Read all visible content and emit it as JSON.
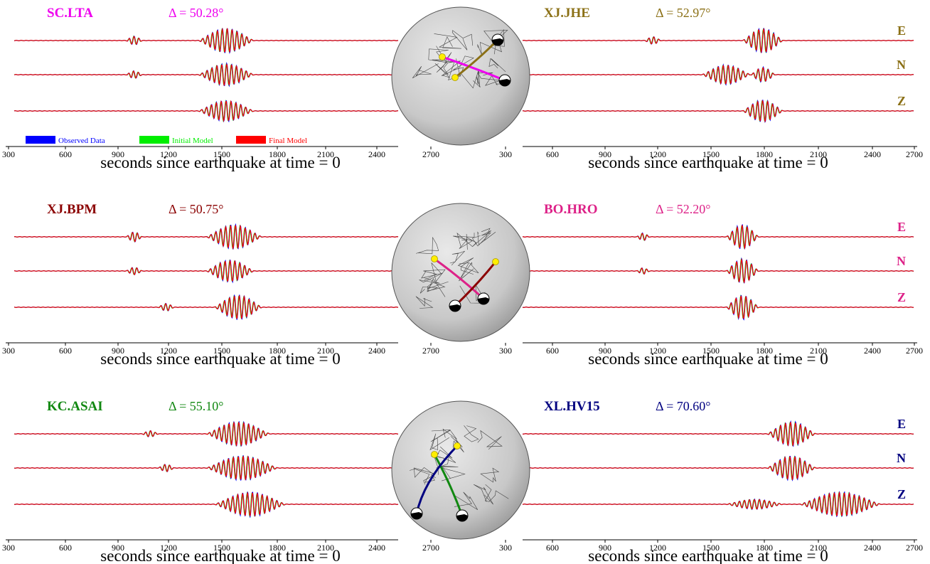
{
  "chart_data": {
    "type": "line",
    "xlabel": "seconds since earthquake at time = 0",
    "xlim": [
      300,
      2700
    ],
    "xticks": [
      300,
      600,
      900,
      1200,
      1500,
      1800,
      2100,
      2400,
      2700
    ],
    "components": [
      "E",
      "N",
      "Z"
    ],
    "legend": {
      "placement": "bottom-left of first panel",
      "entries": [
        {
          "label": "Observed Data",
          "color": "#0000ff"
        },
        {
          "label": "Initial Model",
          "color": "#00ee00"
        },
        {
          "label": "Final Model",
          "color": "#ff0000"
        }
      ]
    },
    "panels": [
      {
        "station": "SC.LTA",
        "distance": "Δ = 50.28°",
        "color": "#ee00ee",
        "traces": {
          "E": [
            [
              1000,
              1100,
              0.35
            ],
            [
              1450,
              1800,
              1.0
            ]
          ],
          "N": [
            [
              1000,
              1100,
              0.3
            ],
            [
              1450,
              1800,
              0.9
            ]
          ],
          "Z": [
            [
              1450,
              1800,
              0.85
            ]
          ]
        }
      },
      {
        "station": "XJ.JHE",
        "distance": "Δ = 52.97°",
        "color": "#8b7016",
        "traces": {
          "E": [
            [
              1050,
              1150,
              0.3
            ],
            [
              1650,
              1900,
              1.0
            ]
          ],
          "N": [
            [
              1400,
              1700,
              0.8
            ],
            [
              1700,
              1850,
              0.6
            ]
          ],
          "Z": [
            [
              1650,
              1900,
              0.9
            ]
          ]
        }
      },
      {
        "station": "XJ.BPM",
        "distance": "Δ = 50.75°",
        "color": "#8b0000",
        "traces": {
          "E": [
            [
              1000,
              1100,
              0.4
            ],
            [
              1500,
              1850,
              1.0
            ]
          ],
          "N": [
            [
              1000,
              1100,
              0.3
            ],
            [
              1500,
              1800,
              0.9
            ]
          ],
          "Z": [
            [
              1200,
              1300,
              0.3
            ],
            [
              1550,
              1850,
              1.0
            ]
          ]
        }
      },
      {
        "station": "BO.HRO",
        "distance": "Δ = 52.20°",
        "color": "#dd2288",
        "traces": {
          "E": [
            [
              1000,
              1080,
              0.3
            ],
            [
              1550,
              1750,
              1.0
            ]
          ],
          "N": [
            [
              1000,
              1080,
              0.25
            ],
            [
              1550,
              1750,
              1.0
            ]
          ],
          "Z": [
            [
              1550,
              1750,
              1.0
            ]
          ]
        }
      },
      {
        "station": "KC.ASAI",
        "distance": "Δ = 55.10°",
        "color": "#118811",
        "traces": {
          "E": [
            [
              1100,
              1200,
              0.25
            ],
            [
              1500,
              1900,
              1.0
            ]
          ],
          "N": [
            [
              1200,
              1300,
              0.3
            ],
            [
              1500,
              1950,
              1.0
            ]
          ],
          "Z": [
            [
              1550,
              2000,
              1.0
            ]
          ]
        }
      },
      {
        "station": "XL.HV15",
        "distance": "Δ = 70.60°",
        "color": "#000080",
        "traces": {
          "E": [
            [
              1800,
              2100,
              1.0
            ]
          ],
          "N": [
            [
              1800,
              2100,
              1.0
            ]
          ],
          "Z": [
            [
              1550,
              1900,
              0.4
            ],
            [
              2000,
              2500,
              1.0
            ]
          ]
        }
      }
    ]
  }
}
